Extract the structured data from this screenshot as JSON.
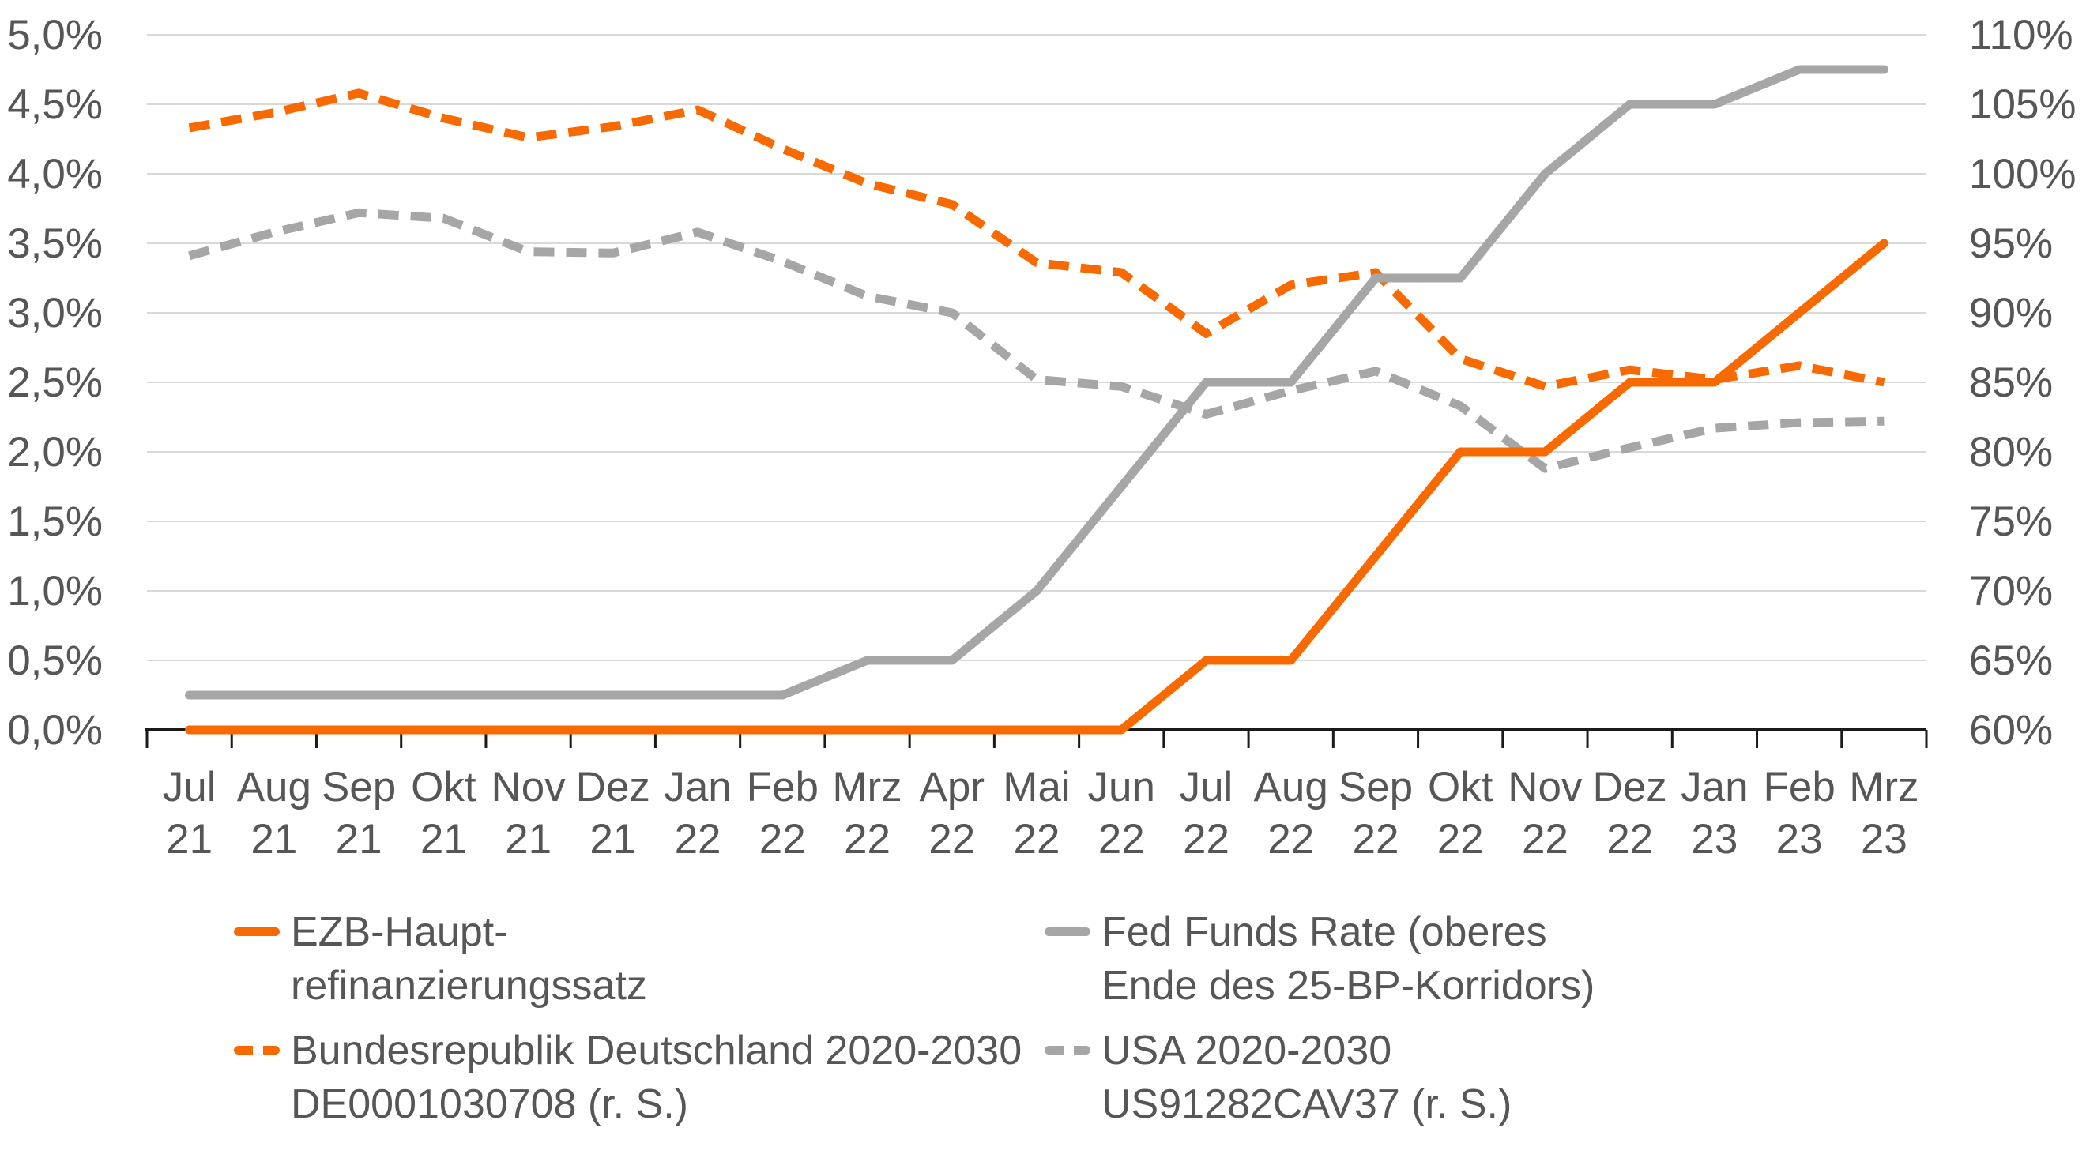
{
  "chart": {
    "background": "#FFFFFF",
    "colors": {
      "orange": "#F86A00",
      "gray": "#A6A6A6",
      "gridline": "#D9D9D9",
      "axis_line": "#1A1A1A",
      "axis_text": "#565656"
    },
    "left_axis": {
      "ticks": [
        "0,0%",
        "0,5%",
        "1,0%",
        "1,5%",
        "2,0%",
        "2,5%",
        "3,0%",
        "3,5%",
        "4,0%",
        "4,5%",
        "5,0%"
      ]
    },
    "right_axis": {
      "ticks": [
        "60%",
        "65%",
        "70%",
        "75%",
        "80%",
        "85%",
        "90%",
        "95%",
        "100%",
        "105%",
        "110%"
      ]
    }
  },
  "chart_data": {
    "type": "line",
    "title": "",
    "xlabel": "",
    "ylabel_left": "",
    "ylabel_right": "",
    "grid": true,
    "legend_position": "bottom",
    "left_axis_range": [
      0,
      5
    ],
    "right_axis_range": [
      60,
      110
    ],
    "categories_month": [
      "Jul",
      "Aug",
      "Sep",
      "Okt",
      "Nov",
      "Dez",
      "Jan",
      "Feb",
      "Mrz",
      "Apr",
      "Mai",
      "Jun",
      "Jul",
      "Aug",
      "Sep",
      "Okt",
      "Nov",
      "Dez",
      "Jan",
      "Feb",
      "Mrz"
    ],
    "categories_year": [
      "21",
      "21",
      "21",
      "21",
      "21",
      "21",
      "22",
      "22",
      "22",
      "22",
      "22",
      "22",
      "22",
      "22",
      "22",
      "22",
      "22",
      "22",
      "23",
      "23",
      "23"
    ],
    "series": [
      {
        "id": "usa-2020-2030",
        "name": "USA 2020-2030 US91282CAV37 (r. S.)",
        "axis": "right",
        "style": "dashed",
        "color": "#A6A6A6",
        "values": [
          94.1,
          95.8,
          97.2,
          96.8,
          94.4,
          94.3,
          95.8,
          93.7,
          91.2,
          90.0,
          85.2,
          84.7,
          82.7,
          84.4,
          85.8,
          83.3,
          78.8,
          80.3,
          81.7,
          82.1,
          82.2
        ]
      },
      {
        "id": "de-bund-2020-2030",
        "name": "Bundesrepublik Deutschland 2020-2030 DE0001030708 (r. S.)",
        "axis": "right",
        "style": "dashed",
        "color": "#F86A00",
        "values": [
          103.3,
          104.4,
          105.8,
          104.0,
          102.6,
          103.4,
          104.6,
          101.8,
          99.3,
          97.8,
          93.6,
          92.9,
          88.5,
          92.0,
          92.9,
          86.7,
          84.7,
          85.9,
          85.2,
          86.2,
          85.0
        ]
      },
      {
        "id": "fed-funds-rate",
        "name": "Fed Funds Rate (oberes Ende des 25-BP-Korridors)",
        "axis": "left",
        "style": "solid",
        "color": "#A6A6A6",
        "values": [
          0.25,
          0.25,
          0.25,
          0.25,
          0.25,
          0.25,
          0.25,
          0.25,
          0.5,
          0.5,
          1.0,
          1.75,
          2.5,
          2.5,
          3.25,
          3.25,
          4.0,
          4.5,
          4.5,
          4.75,
          4.75
        ]
      },
      {
        "id": "ezb-hauptrefinanzierungssatz",
        "name": "EZB-Hauptrefinanzierungssatz",
        "axis": "left",
        "style": "solid",
        "color": "#F86A00",
        "values": [
          0.0,
          0.0,
          0.0,
          0.0,
          0.0,
          0.0,
          0.0,
          0.0,
          0.0,
          0.0,
          0.0,
          0.0,
          0.5,
          0.5,
          1.25,
          2.0,
          2.0,
          2.5,
          2.5,
          3.0,
          3.5
        ]
      }
    ]
  },
  "legend": {
    "items": [
      {
        "id": "ezb",
        "line1": "EZB-Haupt-",
        "line2": "refinanzierungssatz",
        "style": "solid",
        "color": "#F86A00"
      },
      {
        "id": "bund",
        "line1": "Bundesrepublik Deutschland 2020-2030",
        "line2": "DE0001030708 (r. S.)",
        "style": "dashed",
        "color": "#F86A00"
      },
      {
        "id": "fed",
        "line1": "Fed Funds Rate (oberes",
        "line2": "Ende des 25-BP-Korridors)",
        "style": "solid",
        "color": "#A6A6A6"
      },
      {
        "id": "usa",
        "line1": "USA 2020-2030",
        "line2": "US91282CAV37 (r. S.)",
        "style": "dashed",
        "color": "#A6A6A6"
      }
    ]
  }
}
